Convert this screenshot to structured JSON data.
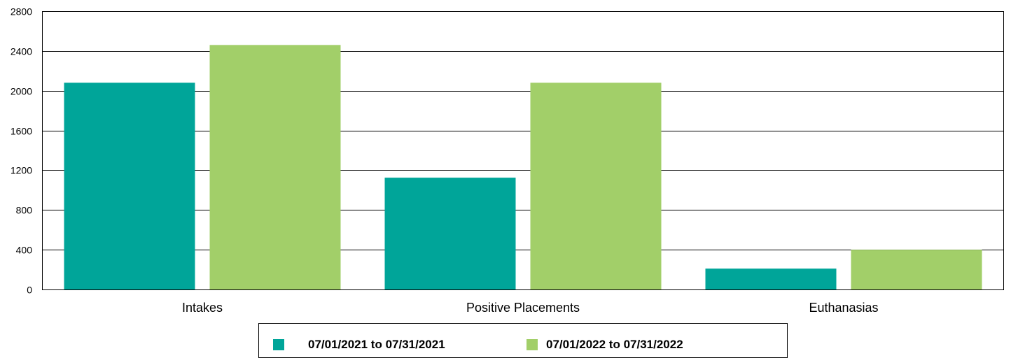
{
  "chart_data": {
    "type": "bar",
    "categories": [
      "Intakes",
      "Positive Placements",
      "Euthanasias"
    ],
    "series": [
      {
        "name": "07/01/2021 to 07/31/2021",
        "color": "#00a599",
        "values": [
          2080,
          1125,
          210
        ]
      },
      {
        "name": "07/01/2022 to 07/31/2022",
        "color": "#a2cf69",
        "values": [
          2460,
          2080,
          400
        ]
      }
    ],
    "ylim": [
      0,
      2800
    ],
    "yticks": [
      0,
      400,
      800,
      1200,
      1600,
      2000,
      2400,
      2800
    ],
    "grid": true,
    "legend_position": "bottom"
  }
}
